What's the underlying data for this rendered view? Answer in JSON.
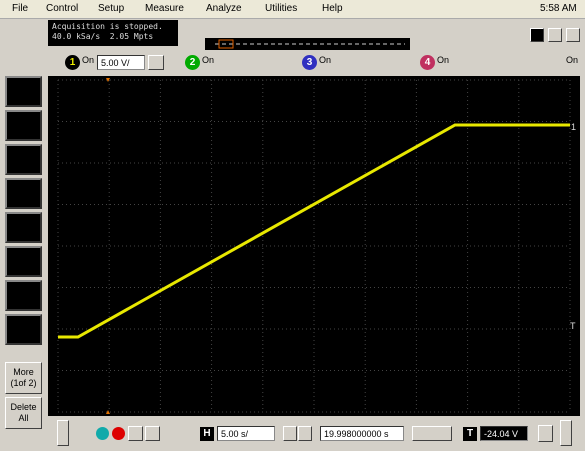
{
  "menu": [
    "File",
    "Control",
    "Setup",
    "Measure",
    "Analyze",
    "Utilities",
    "Help"
  ],
  "clock": "5:58 AM",
  "status": [
    "Acquisition is stopped.",
    "40.0 kSa/s  2.05 Mpts"
  ],
  "channels": [
    {
      "number": "1",
      "on": "On",
      "scale": "5.00 V/"
    },
    {
      "number": "2",
      "on": "On"
    },
    {
      "number": "3",
      "on": "On"
    },
    {
      "number": "4",
      "on": "On"
    }
  ],
  "side_buttons": [
    [
      "More",
      "(1of 2)"
    ],
    [
      "Delete",
      "All"
    ]
  ],
  "trace_markers": [
    "1",
    "T"
  ],
  "horizontal_button": "H",
  "timebase": "5.00 s/",
  "position": "19.998000000 s",
  "trigger_button": "T",
  "trigger_level": "-24.04 V"
}
